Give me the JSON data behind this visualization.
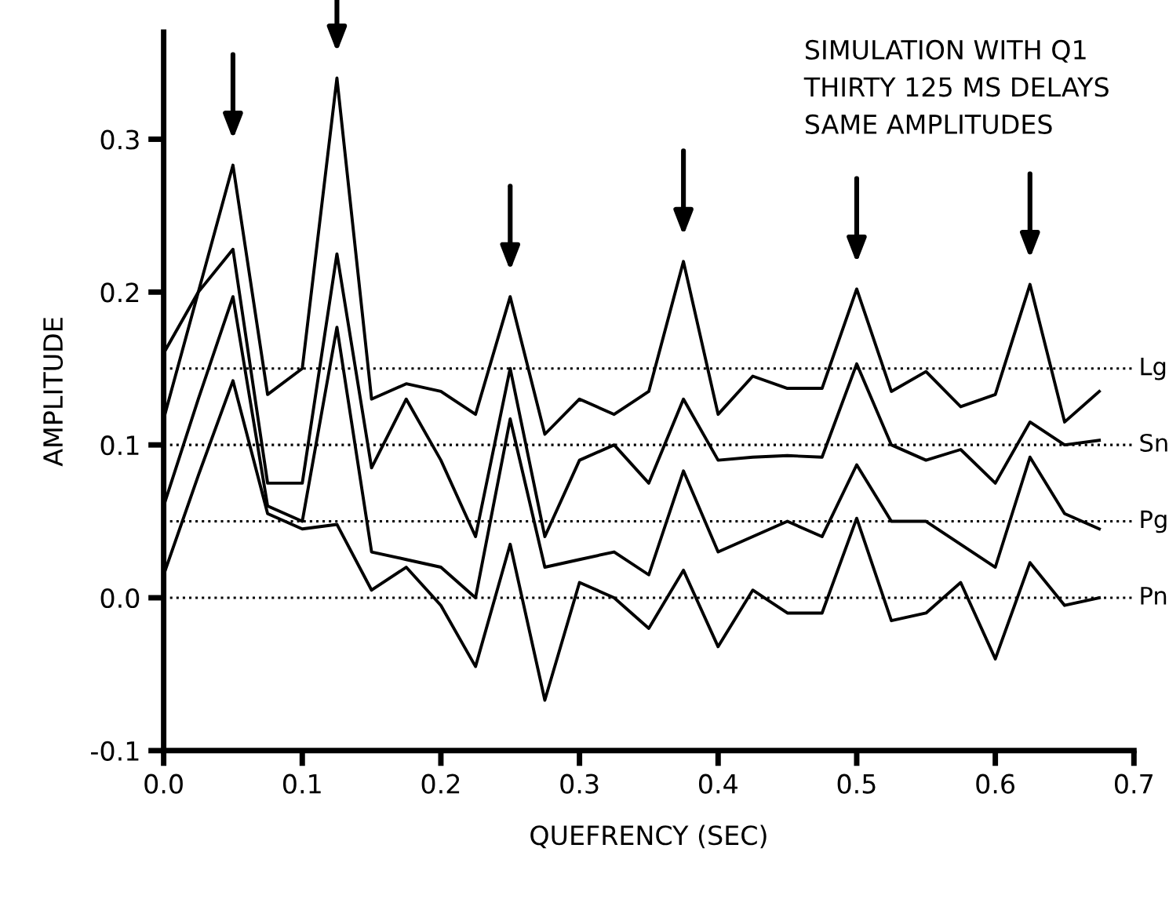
{
  "chart_data": {
    "type": "line",
    "xlabel": "QUEFRENCY (SEC)",
    "ylabel": "AMPLITUDE",
    "annotations": [
      "SIMULATION WITH Q1\nTHIRTY 125 MS DELAYS\nSAME AMPLITUDES"
    ],
    "x": [
      0,
      0.025,
      0.05,
      0.075,
      0.1,
      0.125,
      0.15,
      0.175,
      0.2,
      0.225,
      0.25,
      0.275,
      0.3,
      0.325,
      0.35,
      0.375,
      0.4,
      0.425,
      0.45,
      0.475,
      0.5,
      0.525,
      0.55,
      0.575,
      0.6,
      0.625,
      0.65,
      0.675
    ],
    "series": [
      {
        "name": "Lg",
        "color": "#000000",
        "values": [
          0.117,
          0.2,
          0.283,
          0.133,
          0.15,
          0.34,
          0.13,
          0.14,
          0.135,
          0.12,
          0.197,
          0.107,
          0.13,
          0.12,
          0.135,
          0.22,
          0.12,
          0.145,
          0.137,
          0.137,
          0.202,
          0.135,
          0.148,
          0.125,
          0.133,
          0.205,
          0.115,
          0.135
        ]
      },
      {
        "name": "Sn",
        "color": "#000000",
        "values": [
          0.16,
          0.2,
          0.228,
          0.075,
          0.075,
          0.225,
          0.085,
          0.13,
          0.09,
          0.04,
          0.15,
          0.04,
          0.09,
          0.1,
          0.075,
          0.13,
          0.09,
          0.092,
          0.093,
          0.092,
          0.153,
          0.1,
          0.09,
          0.097,
          0.075,
          0.115,
          0.1,
          0.103
        ]
      },
      {
        "name": "Pg",
        "color": "#000000",
        "values": [
          0.06,
          0.13,
          0.197,
          0.06,
          0.05,
          0.177,
          0.03,
          0.025,
          0.02,
          0.0,
          0.117,
          0.02,
          0.025,
          0.03,
          0.015,
          0.083,
          0.03,
          0.04,
          0.05,
          0.04,
          0.087,
          0.05,
          0.05,
          0.035,
          0.02,
          0.092,
          0.055,
          0.045
        ]
      },
      {
        "name": "Pn",
        "color": "#000000",
        "values": [
          0.015,
          0.08,
          0.142,
          0.055,
          0.045,
          0.048,
          0.005,
          0.02,
          -0.005,
          -0.045,
          0.035,
          -0.067,
          0.01,
          0.0,
          -0.02,
          0.018,
          -0.032,
          0.005,
          -0.01,
          -0.01,
          0.052,
          -0.015,
          -0.01,
          0.01,
          -0.04,
          0.023,
          -0.005,
          0.0
        ]
      }
    ],
    "ref_lines": [
      {
        "axis": "y",
        "value": 0.15,
        "line_style": "dotted",
        "color": "#000000"
      },
      {
        "axis": "y",
        "value": 0.1,
        "line_style": "dotted",
        "color": "#000000"
      },
      {
        "axis": "y",
        "value": 0.05,
        "line_style": "dotted",
        "color": "#000000"
      },
      {
        "axis": "y",
        "value": 0.0,
        "line_style": "dotted",
        "color": "#000000"
      }
    ],
    "xlim": [
      0,
      0.7
    ],
    "xticks": [
      {
        "value": 0,
        "label": "0.0"
      },
      0.1,
      0.2,
      0.3,
      0.4,
      0.5,
      0.6,
      0.7
    ],
    "ylim": [
      -0.1,
      0.37
    ],
    "yticks": [
      -0.1,
      {
        "value": 0,
        "label": "0.0"
      },
      0.1,
      0.2,
      0.3
    ],
    "grid": false,
    "legend": false,
    "marker": "none",
    "line_style": "solid"
  }
}
